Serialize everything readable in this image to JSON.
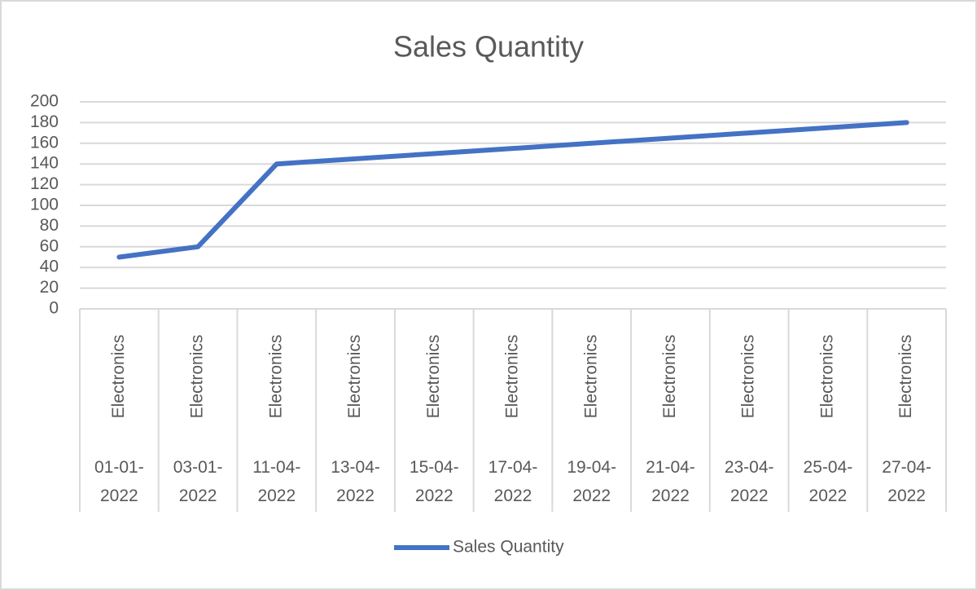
{
  "chart_data": {
    "type": "line",
    "title": "Sales Quantity",
    "categories": [
      "01-01-2022",
      "03-01-2022",
      "11-04-2022",
      "13-04-2022",
      "15-04-2022",
      "17-04-2022",
      "19-04-2022",
      "21-04-2022",
      "23-04-2022",
      "25-04-2022",
      "27-04-2022"
    ],
    "subcategories": [
      "Electronics",
      "Electronics",
      "Electronics",
      "Electronics",
      "Electronics",
      "Electronics",
      "Electronics",
      "Electronics",
      "Electronics",
      "Electronics",
      "Electronics"
    ],
    "series": [
      {
        "name": "Sales Quantity",
        "color": "#4472c4",
        "values": [
          50,
          60,
          140,
          145,
          150,
          155,
          160,
          165,
          170,
          175,
          180
        ]
      }
    ],
    "ylim": [
      0,
      200
    ],
    "yticks": [
      0,
      20,
      40,
      60,
      80,
      100,
      120,
      140,
      160,
      180,
      200
    ],
    "grid": true,
    "legend": "bottom"
  }
}
